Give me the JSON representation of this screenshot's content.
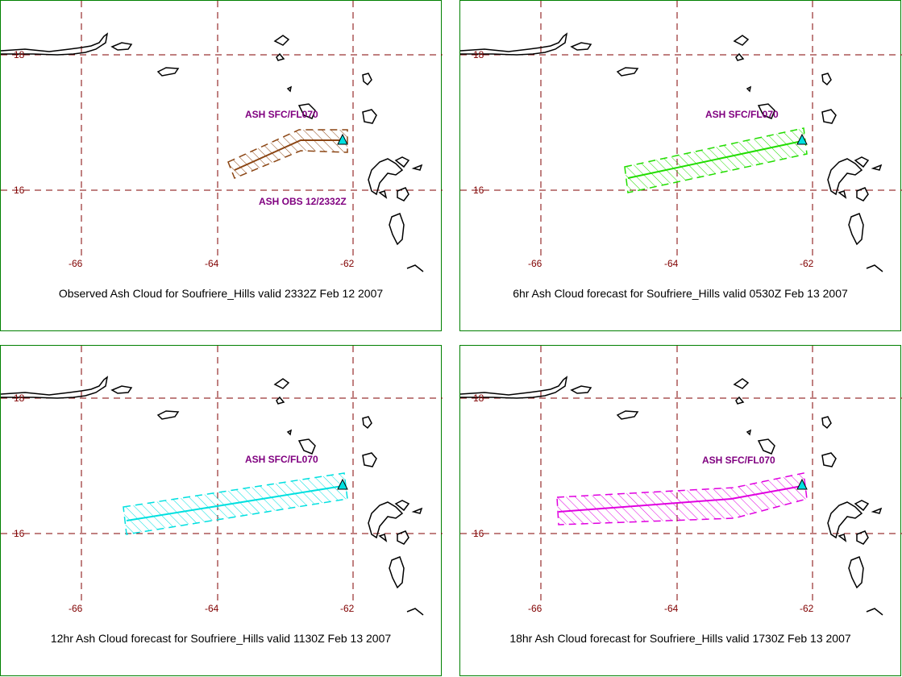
{
  "colors": {
    "frame": "#008000",
    "grid": "#800000",
    "label_purple": "#800080"
  },
  "panels": [
    {
      "caption": "Observed Ash Cloud for Soufriere_Hills valid 2332Z Feb 12 2007",
      "ash_label": "ASH SFC/FL070",
      "obs_label": "ASH OBS 12/2332Z",
      "cloud_color": "#8b4513",
      "lat_labels": [
        "18",
        "16"
      ],
      "lon_labels": [
        "-66",
        "-64",
        "-62"
      ]
    },
    {
      "caption": "6hr Ash Cloud forecast for Soufriere_Hills valid 0530Z Feb 13 2007",
      "ash_label": "ASH SFC/FL070",
      "cloud_color": "#22dd00",
      "lat_labels": [
        "18",
        "16"
      ],
      "lon_labels": [
        "-66",
        "-64",
        "-62"
      ]
    },
    {
      "caption": "12hr Ash Cloud forecast for Soufriere_Hills valid 1130Z Feb 13 2007",
      "ash_label": "ASH SFC/FL070",
      "cloud_color": "#00e0e0",
      "lat_labels": [
        "18",
        "16"
      ],
      "lon_labels": [
        "-66",
        "-64",
        "-62"
      ]
    },
    {
      "caption": "18hr Ash Cloud forecast for Soufriere_Hills valid 1730Z Feb 13 2007",
      "ash_label": "ASH SFC/FL070",
      "cloud_color": "#e000e0",
      "lat_labels": [
        "18",
        "16"
      ],
      "lon_labels": [
        "-66",
        "-64",
        "-62"
      ]
    }
  ]
}
